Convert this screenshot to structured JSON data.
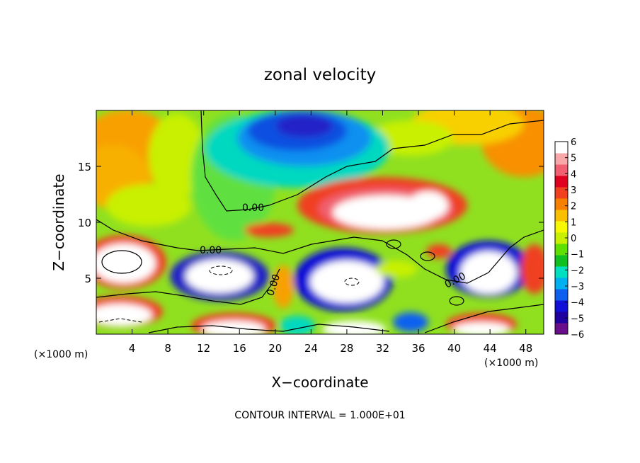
{
  "chart_data": {
    "type": "heatmap",
    "title": "zonal velocity",
    "xlabel": "X−coordinate",
    "ylabel": "Z−coordinate",
    "x_unit_label_left": "(×1000 m)",
    "x_unit_label_right": "(×1000 m)",
    "footer": "CONTOUR INTERVAL = 1.000E+01",
    "xlim": [
      0,
      50
    ],
    "ylim": [
      0,
      20
    ],
    "x_ticks": [
      4,
      8,
      12,
      16,
      20,
      24,
      28,
      32,
      36,
      40,
      44,
      48
    ],
    "x_tick_labels": [
      "4",
      "8",
      "12",
      "16",
      "20",
      "24",
      "28",
      "32",
      "36",
      "40",
      "44",
      "48"
    ],
    "y_ticks": [
      5,
      10,
      15
    ],
    "y_tick_labels": [
      "5",
      "10",
      "15"
    ],
    "colorbar": {
      "range": [
        -6,
        6
      ],
      "tick_labels": [
        "6",
        "5",
        "4",
        "3",
        "2",
        "1",
        "0",
        "−1",
        "−2",
        "−3",
        "−4",
        "−5",
        "−6"
      ],
      "colors": [
        "#6a0d8a",
        "#20009e",
        "#1010d8",
        "#1060f0",
        "#00b0f0",
        "#00e0c0",
        "#10c020",
        "#60e000",
        "#c8f000",
        "#f8f800",
        "#f8c000",
        "#f88000",
        "#f04020",
        "#e00020",
        "#f06070",
        "#f8a8a8",
        "#ffffff"
      ]
    },
    "contour_labels": [
      "0.00",
      "0.00",
      "0.00",
      "0.00"
    ],
    "grid": false
  }
}
